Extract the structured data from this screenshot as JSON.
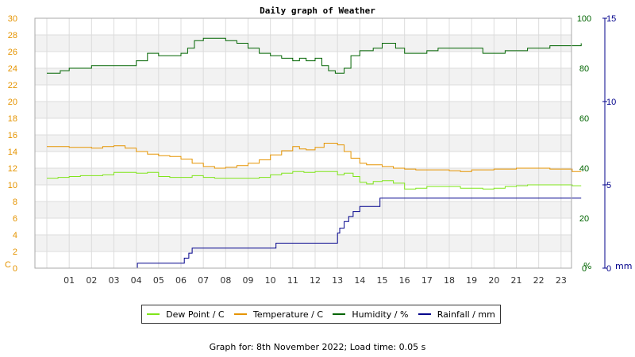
{
  "chart_data": {
    "type": "line",
    "title": "Daily graph of Weather",
    "left_axis": {
      "unit": "C",
      "ylim": [
        0,
        30
      ],
      "ticks": [
        "0",
        "2",
        "4",
        "6",
        "8",
        "10",
        "12",
        "14",
        "16",
        "18",
        "20",
        "22",
        "24",
        "26",
        "28",
        "30"
      ]
    },
    "humidity_axis": {
      "unit": "%",
      "ylim": [
        0,
        100
      ],
      "ticks": [
        "0",
        "20",
        "40",
        "60",
        "80",
        "100"
      ]
    },
    "rain_axis": {
      "unit": "mm",
      "ylim": [
        0,
        15
      ],
      "ticks": [
        "0",
        "5",
        "10",
        "15"
      ]
    },
    "x_ticks": [
      "01",
      "02",
      "03",
      "04",
      "05",
      "06",
      "07",
      "08",
      "09",
      "10",
      "11",
      "12",
      "13",
      "14",
      "15",
      "16",
      "17",
      "18",
      "19",
      "20",
      "21",
      "22",
      "23"
    ],
    "grid": true,
    "legend_position": "bottom",
    "series": [
      {
        "name": "Dew Point / C",
        "color": "#7fe51a",
        "axis": "left",
        "x": [
          0,
          0.5,
          1,
          1.5,
          2,
          2.5,
          3,
          3.5,
          4,
          4.5,
          5,
          5.5,
          6,
          6.5,
          7,
          7.5,
          8,
          8.5,
          9,
          9.5,
          10,
          10.5,
          11,
          11.5,
          12,
          12.5,
          13,
          13.3,
          13.7,
          14,
          14.3,
          14.6,
          15,
          15.5,
          16,
          16.5,
          17,
          17.5,
          18,
          18.5,
          19,
          19.5,
          20,
          20.5,
          21,
          21.5,
          22,
          22.5,
          23,
          23.5,
          23.9
        ],
        "values": [
          10.8,
          10.9,
          11.0,
          11.1,
          11.1,
          11.2,
          11.5,
          11.5,
          11.4,
          11.5,
          11.0,
          10.9,
          10.9,
          11.1,
          10.9,
          10.8,
          10.8,
          10.8,
          10.8,
          10.9,
          11.2,
          11.4,
          11.6,
          11.5,
          11.6,
          11.6,
          11.2,
          11.4,
          11.0,
          10.3,
          10.1,
          10.4,
          10.5,
          10.2,
          9.5,
          9.6,
          9.8,
          9.8,
          9.8,
          9.6,
          9.6,
          9.5,
          9.6,
          9.8,
          9.9,
          10.0,
          10.0,
          10.0,
          10.0,
          9.9,
          9.9
        ]
      },
      {
        "name": "Temperature / C",
        "color": "#e59400",
        "axis": "left",
        "x": [
          0,
          0.5,
          1,
          1.5,
          2,
          2.5,
          3,
          3.5,
          4,
          4.5,
          5,
          5.5,
          6,
          6.5,
          7,
          7.5,
          8,
          8.5,
          9,
          9.5,
          10,
          10.5,
          11,
          11.3,
          11.6,
          12,
          12.4,
          12.8,
          13,
          13.3,
          13.6,
          14,
          14.3,
          14.6,
          15,
          15.5,
          16,
          16.5,
          17,
          17.5,
          18,
          18.5,
          19,
          19.5,
          20,
          20.5,
          21,
          21.5,
          22,
          22.5,
          23,
          23.5,
          23.9
        ],
        "values": [
          14.6,
          14.6,
          14.5,
          14.5,
          14.4,
          14.6,
          14.7,
          14.4,
          14.0,
          13.7,
          13.5,
          13.4,
          13.1,
          12.6,
          12.2,
          12.0,
          12.1,
          12.3,
          12.6,
          13.0,
          13.6,
          14.1,
          14.6,
          14.3,
          14.2,
          14.5,
          15.0,
          15.0,
          14.8,
          14.0,
          13.2,
          12.6,
          12.4,
          12.4,
          12.2,
          12.0,
          11.9,
          11.8,
          11.8,
          11.8,
          11.7,
          11.6,
          11.8,
          11.8,
          11.9,
          11.9,
          12.0,
          12.0,
          12.0,
          11.9,
          11.9,
          11.6,
          11.6
        ]
      },
      {
        "name": "Humidity / %",
        "color": "#006400",
        "axis": "right",
        "x": [
          0,
          0.3,
          0.6,
          1,
          1.5,
          2,
          2.5,
          3,
          3.5,
          4,
          4.5,
          5,
          5.5,
          6,
          6.3,
          6.6,
          7,
          7.5,
          8,
          8.5,
          9,
          9.5,
          10,
          10.5,
          11,
          11.3,
          11.6,
          12,
          12.3,
          12.6,
          12.9,
          13.3,
          13.6,
          14,
          14.3,
          14.6,
          15,
          15.3,
          15.6,
          16,
          16.5,
          17,
          17.5,
          18,
          18.5,
          19,
          19.5,
          20,
          20.5,
          21,
          21.5,
          22,
          22.5,
          23,
          23.5,
          23.9
        ],
        "values": [
          78,
          78,
          79,
          80,
          80,
          81,
          81,
          81,
          81,
          83,
          86,
          85,
          85,
          86,
          88,
          91,
          92,
          92,
          91,
          90,
          88,
          86,
          85,
          84,
          83,
          84,
          83,
          84,
          81,
          79,
          78,
          80,
          85,
          87,
          87,
          88,
          90,
          90,
          88,
          86,
          86,
          87,
          88,
          88,
          88,
          88,
          86,
          86,
          87,
          87,
          88,
          88,
          89,
          89,
          89,
          90
        ]
      },
      {
        "name": "Rainfall / mm",
        "color": "#00008b",
        "axis": "rain",
        "x": [
          0,
          4.05,
          4.05,
          6.15,
          6.15,
          6.35,
          6.35,
          6.5,
          6.5,
          10.25,
          10.25,
          13.0,
          13.0,
          13.1,
          13.1,
          13.3,
          13.3,
          13.5,
          13.5,
          13.7,
          13.7,
          14.0,
          14.0,
          14.9,
          14.9,
          23.9
        ],
        "values": [
          0,
          0,
          0.3,
          0.3,
          0.6,
          0.6,
          0.9,
          0.9,
          1.2,
          1.2,
          1.5,
          1.5,
          2.1,
          2.1,
          2.4,
          2.4,
          2.8,
          2.8,
          3.1,
          3.1,
          3.4,
          3.4,
          3.7,
          3.7,
          4.2,
          4.2
        ]
      }
    ]
  },
  "footer": {
    "text": "Graph for: 8th November 2022; Load time: 0.05 s"
  }
}
